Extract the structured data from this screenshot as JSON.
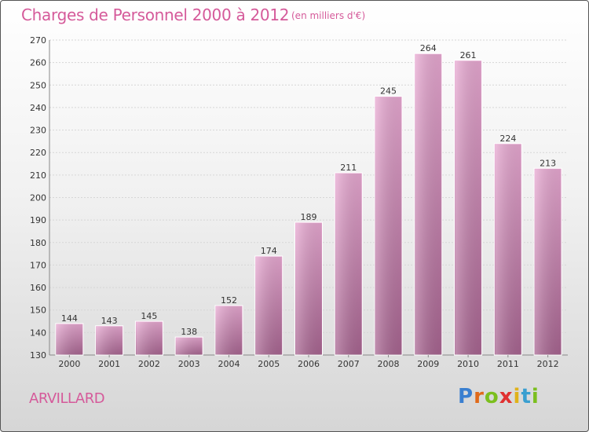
{
  "title": "Charges de Personnel 2000 à 2012",
  "subtitle": "(en milliers d'€)",
  "commune": "ARVILLARD",
  "brand": {
    "letters": [
      "P",
      "r",
      "o",
      "x",
      "i",
      "t",
      "i"
    ],
    "colors": [
      "#3a7fd0",
      "#e06a1a",
      "#7bbf1e",
      "#e03131",
      "#e0b21a",
      "#3a9fd0",
      "#7bbf1e"
    ]
  },
  "colors": {
    "bar": "#c97bb0",
    "text_accent": "#d55a9a"
  },
  "chart_data": {
    "type": "bar",
    "title": "Charges de Personnel 2000 à 2012",
    "subtitle": "(en milliers d'€)",
    "categories": [
      "2000",
      "2001",
      "2002",
      "2003",
      "2004",
      "2005",
      "2006",
      "2007",
      "2008",
      "2009",
      "2010",
      "2011",
      "2012"
    ],
    "values": [
      144,
      143,
      145,
      138,
      152,
      174,
      189,
      211,
      245,
      264,
      261,
      224,
      213
    ],
    "ylim": [
      130,
      270
    ],
    "yticks": [
      130,
      140,
      150,
      160,
      170,
      180,
      190,
      200,
      210,
      220,
      230,
      240,
      250,
      260,
      270
    ],
    "grid": true,
    "data_labels": true
  }
}
